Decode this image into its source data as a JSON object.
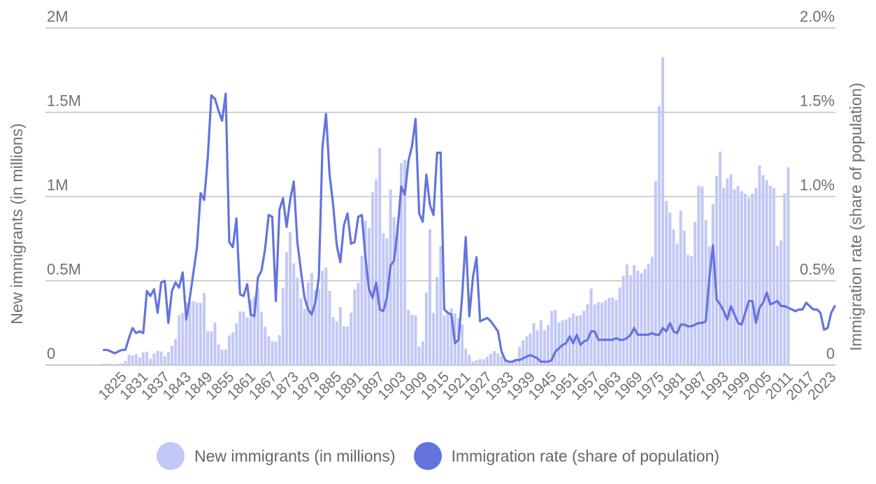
{
  "colors": {
    "bars": "#c2c8f5",
    "line": "#6474dc",
    "grid": "#b5b5b5",
    "text": "#707070"
  },
  "legend": [
    {
      "label": "New immigrants (in millions)",
      "color": "#c2c8f5"
    },
    {
      "label": "Immigration rate (share of population)",
      "color": "#6474dc"
    }
  ],
  "chart_data": {
    "type": "bar",
    "title": "",
    "xlabel": "",
    "ylabel": "New immigrants (in millions)",
    "y2label": "Immigration rate (share of population)",
    "ylim": [
      0,
      2000000
    ],
    "y2lim": [
      0,
      2.0
    ],
    "yticks": [
      {
        "value": 0,
        "label": "0"
      },
      {
        "value": 500000,
        "label": "0.5M"
      },
      {
        "value": 1000000,
        "label": "1M"
      },
      {
        "value": 1500000,
        "label": "1.5M"
      },
      {
        "value": 2000000,
        "label": "2M"
      }
    ],
    "y2ticks": [
      {
        "value": 0,
        "label": "0"
      },
      {
        "value": 0.5,
        "label": "0.5%"
      },
      {
        "value": 1.0,
        "label": "1.0%"
      },
      {
        "value": 1.5,
        "label": "1.5%"
      },
      {
        "value": 2.0,
        "label": "2.0%"
      }
    ],
    "xticks": [
      "1825",
      "1831",
      "1837",
      "1843",
      "1849",
      "1855",
      "1861",
      "1867",
      "1873",
      "1879",
      "1885",
      "1891",
      "1897",
      "1903",
      "1909",
      "1915",
      "1921",
      "1927",
      "1933",
      "1939",
      "1945",
      "1951",
      "1957",
      "1963",
      "1969",
      "1975",
      "1981",
      "1987",
      "1993",
      "1999",
      "2005",
      "2011",
      "2017",
      "2023"
    ],
    "grid": true,
    "legend_position": "bottom-center",
    "x_start_year": 1820,
    "series": [
      {
        "name": "New immigrants (in millions)",
        "type": "bar",
        "axis": "left",
        "values": [
          8400,
          9100,
          7000,
          6300,
          7900,
          10200,
          22600,
          60500,
          58600,
          65400,
          45400,
          76200,
          79300,
          38900,
          68100,
          84100,
          80300,
          52500,
          78100,
          114400,
          154400,
          297000,
          310000,
          370000,
          380000,
          379500,
          371600,
          368600,
          427800,
          200900,
          200400,
          251300,
          123100,
          91900,
          91900,
          176300,
          193400,
          248100,
          318500,
          315700,
          282200,
          387200,
          404800,
          459800,
          313300,
          227500,
          169900,
          141900,
          138500,
          177800,
          457300,
          669400,
          789000,
          603300,
          518600,
          395300,
          334200,
          490100,
          546900,
          444400,
          455300,
          560300,
          579700,
          439700,
          285600,
          258500,
          343300,
          230800,
          229300,
          311700,
          448600,
          487900,
          648700,
          857000,
          812900,
          1026500,
          1100700,
          1285300,
          782900,
          751800,
          1041600,
          878600,
          838200,
          1197900,
          1218500,
          326700,
          298800,
          295400,
          110600,
          141100,
          430000,
          805200,
          309600,
          522900,
          706900,
          294300,
          304500,
          335200,
          307300,
          279700,
          241700,
          97100,
          60800,
          23100,
          29500,
          35000,
          34900,
          50200,
          67900,
          82900,
          70800,
          51800,
          28800,
          23700,
          28600,
          38100,
          108700,
          147300,
          170600,
          188300,
          249200,
          205700,
          265500,
          208200,
          237800,
          321600,
          326900,
          253300,
          265400,
          271300,
          283800,
          306300,
          292200,
          296700,
          323000,
          361900,
          454400,
          358600,
          373300,
          370500,
          384700,
          398500,
          401000,
          386200,
          460300,
          530600,
          596600,
          533000,
          594100,
          559800,
          543900,
          570000,
          601500,
          643000,
          1090900,
          1536500,
          1827200,
          974000,
          904300,
          804400,
          720500,
          915900,
          798400,
          654500,
          646600,
          849800,
          1064300,
          1059400,
          858700,
          704500,
          958000,
          1122400,
          1266100,
          1052400,
          1107100,
          1130800,
          1042600,
          1062000,
          1031000,
          1016500,
          990600,
          1016500,
          1051000,
          1183500,
          1127200,
          1096600,
          1063300,
          1049300,
          706800,
          740000,
          1018400,
          1172900
        ]
      },
      {
        "name": "Immigration rate (share of population)",
        "type": "line",
        "axis": "right",
        "values": [
          0.09,
          0.09,
          0.08,
          0.07,
          0.08,
          0.09,
          0.09,
          0.16,
          0.22,
          0.19,
          0.2,
          0.19,
          0.44,
          0.41,
          0.45,
          0.31,
          0.49,
          0.5,
          0.25,
          0.44,
          0.49,
          0.46,
          0.55,
          0.27,
          0.4,
          0.55,
          0.7,
          1.02,
          0.98,
          1.23,
          1.6,
          1.58,
          1.51,
          1.45,
          1.61,
          0.73,
          0.7,
          0.87,
          0.42,
          0.41,
          0.48,
          0.3,
          0.29,
          0.52,
          0.56,
          0.69,
          0.89,
          0.88,
          0.38,
          0.92,
          0.99,
          0.82,
          0.98,
          1.09,
          0.73,
          0.56,
          0.4,
          0.33,
          0.3,
          0.37,
          0.52,
          1.29,
          1.49,
          1.13,
          0.95,
          0.71,
          0.61,
          0.83,
          0.9,
          0.72,
          0.73,
          0.88,
          0.89,
          0.64,
          0.45,
          0.4,
          0.49,
          0.33,
          0.32,
          0.4,
          0.59,
          0.62,
          0.81,
          1.06,
          1.01,
          1.21,
          1.3,
          1.46,
          0.9,
          0.85,
          1.13,
          0.95,
          0.89,
          1.26,
          1.26,
          0.33,
          0.31,
          0.3,
          0.13,
          0.15,
          0.41,
          0.76,
          0.29,
          0.52,
          0.64,
          0.26,
          0.27,
          0.28,
          0.26,
          0.23,
          0.2,
          0.08,
          0.03,
          0.02,
          0.02,
          0.03,
          0.03,
          0.04,
          0.05,
          0.06,
          0.05,
          0.04,
          0.02,
          0.02,
          0.02,
          0.03,
          0.08,
          0.1,
          0.12,
          0.13,
          0.17,
          0.13,
          0.18,
          0.12,
          0.14,
          0.15,
          0.2,
          0.2,
          0.15,
          0.15,
          0.15,
          0.15,
          0.15,
          0.16,
          0.15,
          0.15,
          0.16,
          0.18,
          0.22,
          0.18,
          0.18,
          0.18,
          0.18,
          0.19,
          0.18,
          0.18,
          0.22,
          0.2,
          0.25,
          0.2,
          0.19,
          0.24,
          0.24,
          0.23,
          0.23,
          0.24,
          0.25,
          0.25,
          0.26,
          0.52,
          0.71,
          0.39,
          0.36,
          0.32,
          0.27,
          0.35,
          0.3,
          0.25,
          0.24,
          0.31,
          0.38,
          0.38,
          0.25,
          0.34,
          0.37,
          0.43,
          0.36,
          0.37,
          0.38,
          0.35,
          0.35,
          0.34,
          0.33,
          0.32,
          0.33,
          0.33,
          0.37,
          0.35,
          0.33,
          0.33,
          0.31,
          0.21,
          0.22,
          0.31,
          0.35
        ]
      }
    ]
  }
}
